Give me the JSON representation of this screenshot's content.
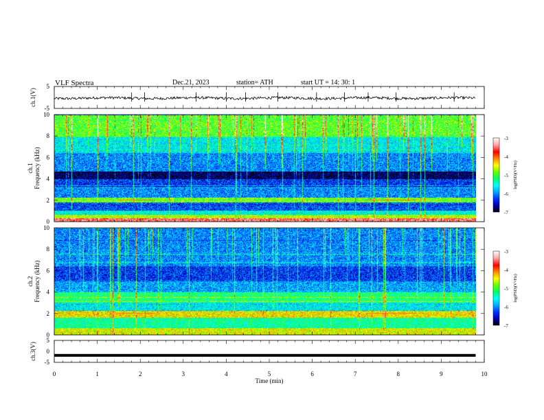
{
  "header": {
    "title": "VLF  Spectra",
    "date": "Dec.21, 2023",
    "station": "station= ATH",
    "start_ut": "start  UT  =    14: 30: 1"
  },
  "panels": {
    "ch1_voltage": {
      "ylabel": "ch.1(V)"
    },
    "ch1_spectrogram": {
      "ylabel_1": "ch.1",
      "ylabel_2": "Frequency (kHz)"
    },
    "ch2_spectrogram": {
      "ylabel_1": "ch.2",
      "ylabel_2": "Frequency (kHz)"
    },
    "ch3_voltage": {
      "ylabel": "ch.3(V)"
    }
  },
  "colorbars": {
    "label": "log(PSD)(V²/Hz)",
    "ticks": [
      "-3",
      "-4",
      "-5",
      "-6",
      "-7"
    ],
    "range": [
      -7,
      -3
    ],
    "colors": [
      "#000000",
      "#0000aa",
      "#0033ff",
      "#00aaff",
      "#00ffff",
      "#00ff66",
      "#66ff00",
      "#ffff00",
      "#ff8800",
      "#ff0000",
      "#ffaaaa",
      "#ffffff"
    ]
  },
  "chart_data": [
    {
      "type": "line",
      "panel": "ch.1(V)",
      "ylabel": "ch.1(V)",
      "ylim": [
        -5,
        5
      ],
      "yticks": [
        "5",
        "-5"
      ],
      "xlim": [
        0,
        10
      ],
      "x_extent_min": [
        0,
        9.8
      ],
      "baseline_V": -0.3,
      "noise_amplitude_V": 0.6,
      "spikes_min": [
        1.8,
        2.1,
        3.3,
        4.0,
        4.45,
        5.2,
        6.1,
        6.75,
        7.3,
        7.95,
        9.3
      ]
    },
    {
      "type": "heatmap",
      "panel": "ch.1",
      "ylabel": "Frequency (kHz)",
      "ylim": [
        0,
        10
      ],
      "yticks": [
        "10",
        "8",
        "6",
        "4",
        "2",
        "0"
      ],
      "xlim": [
        0,
        10
      ],
      "x_extent_min": [
        0,
        9.8
      ],
      "value_range_logPSD": [
        -7,
        -3
      ],
      "background_logPSD": -6.0,
      "bands": [
        {
          "f_kHz": [
            0.0,
            0.3
          ],
          "logPSD": -3.5
        },
        {
          "f_kHz": [
            0.3,
            0.6
          ],
          "logPSD": -4.6
        },
        {
          "f_kHz": [
            0.6,
            1.0
          ],
          "logPSD": -5.5
        },
        {
          "f_kHz": [
            1.0,
            1.8
          ],
          "logPSD": -6.2
        },
        {
          "f_kHz": [
            1.8,
            2.2
          ],
          "logPSD": -4.8
        },
        {
          "f_kHz": [
            2.2,
            3.2
          ],
          "logPSD": -6.0
        },
        {
          "f_kHz": [
            3.2,
            4.0
          ],
          "logPSD": -6.3
        },
        {
          "f_kHz": [
            4.0,
            4.7
          ],
          "logPSD": -6.8
        },
        {
          "f_kHz": [
            4.7,
            6.5
          ],
          "logPSD": -6.0
        },
        {
          "f_kHz": [
            6.5,
            8.0
          ],
          "logPSD": -5.6
        },
        {
          "f_kHz": [
            8.0,
            10.0
          ],
          "logPSD": -4.9
        }
      ]
    },
    {
      "type": "heatmap",
      "panel": "ch.2",
      "ylabel": "Frequency (kHz)",
      "ylim": [
        0,
        10
      ],
      "yticks": [
        "10",
        "8",
        "6",
        "4",
        "2",
        "0"
      ],
      "xlim": [
        0,
        10
      ],
      "x_extent_min": [
        0,
        9.8
      ],
      "value_range_logPSD": [
        -7,
        -3
      ],
      "background_logPSD": -5.8,
      "bands": [
        {
          "f_kHz": [
            0.0,
            0.6
          ],
          "logPSD": -4.5
        },
        {
          "f_kHz": [
            0.6,
            1.6
          ],
          "logPSD": -5.3
        },
        {
          "f_kHz": [
            1.6,
            2.2
          ],
          "logPSD": -4.4
        },
        {
          "f_kHz": [
            2.2,
            3.0
          ],
          "logPSD": -5.6
        },
        {
          "f_kHz": [
            3.0,
            4.0
          ],
          "logPSD": -5.2
        },
        {
          "f_kHz": [
            4.0,
            5.0
          ],
          "logPSD": -5.9
        },
        {
          "f_kHz": [
            5.0,
            6.5
          ],
          "logPSD": -6.3
        },
        {
          "f_kHz": [
            6.5,
            10.0
          ],
          "logPSD": -6.0
        }
      ]
    },
    {
      "type": "line",
      "panel": "ch.3(V)",
      "ylabel": "ch.3(V)",
      "ylim": [
        -5,
        5
      ],
      "yticks": [
        "5",
        "0",
        "-5"
      ],
      "xlim": [
        0,
        10
      ],
      "x_extent_min": [
        0,
        9.8
      ],
      "baseline_V": -1.8,
      "xlabel": "Time  (min)",
      "xticks": [
        "0",
        "1",
        "2",
        "3",
        "4",
        "5",
        "6",
        "7",
        "8",
        "9",
        "10"
      ]
    }
  ]
}
